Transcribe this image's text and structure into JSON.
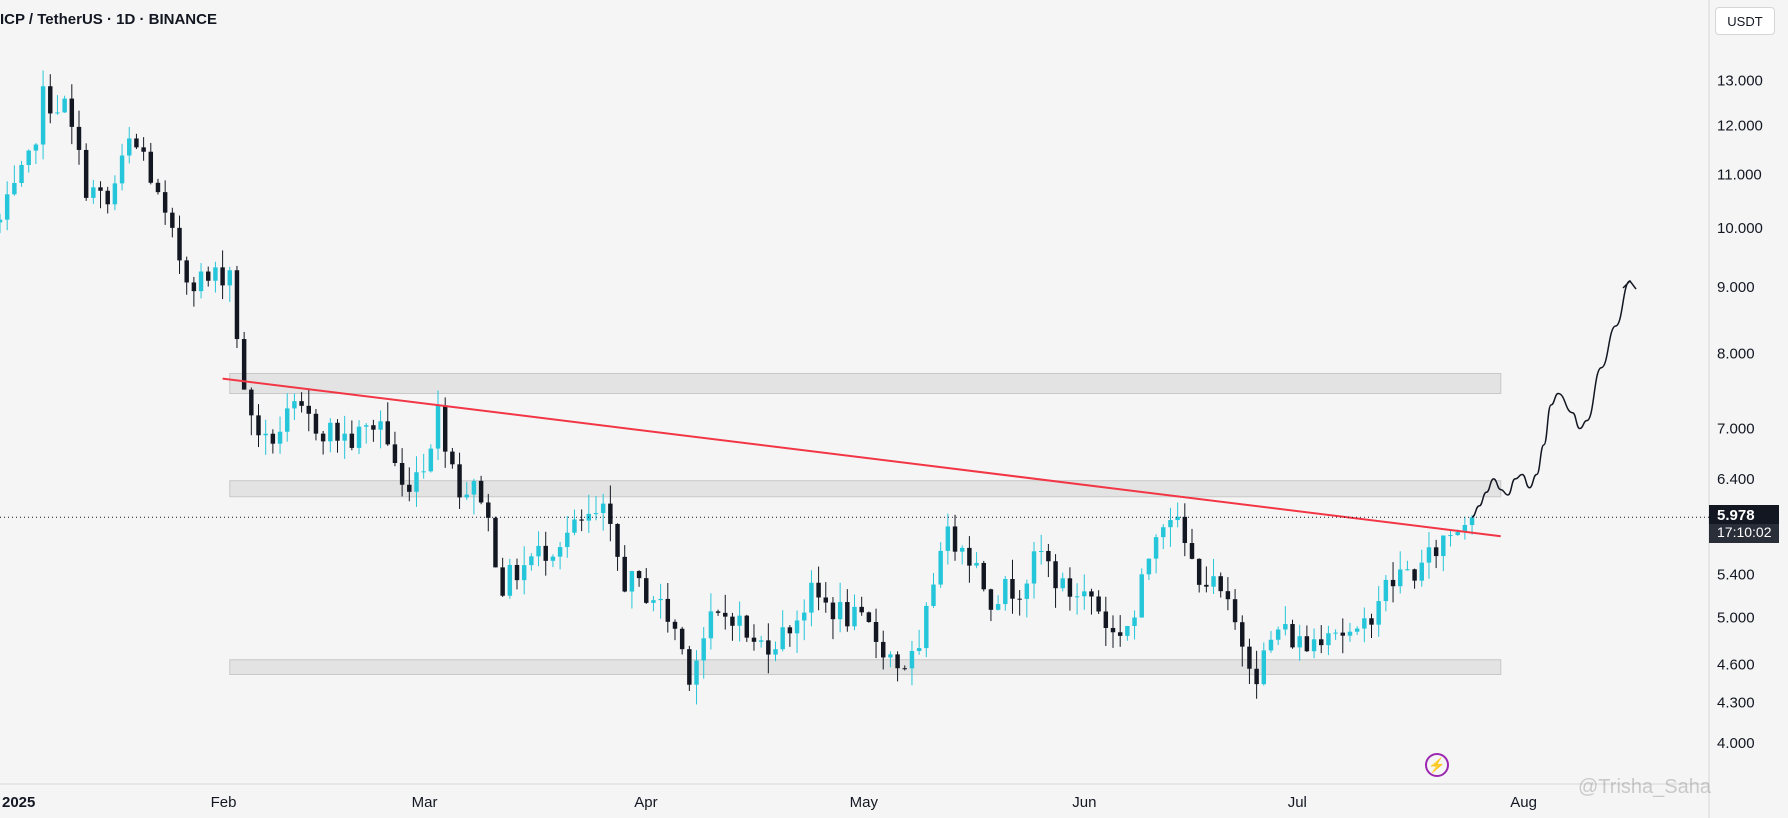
{
  "header": {
    "title": "ICP / TetherUS · 1D · BINANCE"
  },
  "scale": {
    "currency_label": "USDT"
  },
  "price_label": {
    "value": "5.978",
    "countdown": "17:10:02"
  },
  "watermark": "@Trisha_Saha",
  "colors": {
    "up": "#26c6da",
    "down": "#131722",
    "trendline": "#f23645",
    "zone": "#dcdcdc",
    "projection": "#131722"
  },
  "chart_data": {
    "type": "candlestick",
    "symbol": "ICP / TetherUS",
    "interval": "1D",
    "exchange": "BINANCE",
    "y_scale": "log",
    "ylim": [
      3.72,
      15.0
    ],
    "y_ticks": [
      "13.000",
      "12.000",
      "11.000",
      "10.000",
      "9.000",
      "8.000",
      "7.000",
      "6.400",
      "5.978",
      "5.400",
      "5.000",
      "4.600",
      "4.300",
      "4.000"
    ],
    "x_ticks": [
      {
        "label": "2025",
        "date": "2025-01-01"
      },
      {
        "label": "Feb",
        "date": "2025-02-01"
      },
      {
        "label": "Mar",
        "date": "2025-03-01"
      },
      {
        "label": "Apr",
        "date": "2025-04-01"
      },
      {
        "label": "May",
        "date": "2025-05-01"
      },
      {
        "label": "Jun",
        "date": "2025-06-01"
      },
      {
        "label": "Jul",
        "date": "2025-07-01"
      },
      {
        "label": "Aug",
        "date": "2025-08-01"
      }
    ],
    "xlim": [
      "2025-01-01",
      "2025-08-27"
    ],
    "last_price": 5.978,
    "waypoints": [
      {
        "date": "2025-01-01",
        "price": 10.1
      },
      {
        "date": "2025-01-05",
        "price": 11.2
      },
      {
        "date": "2025-01-07",
        "price": 12.6
      },
      {
        "date": "2025-01-10",
        "price": 12.4
      },
      {
        "date": "2025-01-13",
        "price": 10.8
      },
      {
        "date": "2025-01-16",
        "price": 10.4
      },
      {
        "date": "2025-01-19",
        "price": 11.6
      },
      {
        "date": "2025-01-21",
        "price": 11.4
      },
      {
        "date": "2025-01-24",
        "price": 10.1
      },
      {
        "date": "2025-01-27",
        "price": 9.2
      },
      {
        "date": "2025-01-30",
        "price": 9.1
      },
      {
        "date": "2025-02-02",
        "price": 9.3
      },
      {
        "date": "2025-02-04",
        "price": 7.4
      },
      {
        "date": "2025-02-07",
        "price": 6.8
      },
      {
        "date": "2025-02-11",
        "price": 7.2
      },
      {
        "date": "2025-02-15",
        "price": 7.0
      },
      {
        "date": "2025-02-19",
        "price": 6.85
      },
      {
        "date": "2025-02-23",
        "price": 7.1
      },
      {
        "date": "2025-02-26",
        "price": 6.3
      },
      {
        "date": "2025-03-01",
        "price": 6.6
      },
      {
        "date": "2025-03-03",
        "price": 7.2
      },
      {
        "date": "2025-03-06",
        "price": 6.3
      },
      {
        "date": "2025-03-09",
        "price": 6.25
      },
      {
        "date": "2025-03-12",
        "price": 5.3
      },
      {
        "date": "2025-03-16",
        "price": 5.55
      },
      {
        "date": "2025-03-20",
        "price": 5.75
      },
      {
        "date": "2025-03-23",
        "price": 5.9
      },
      {
        "date": "2025-03-26",
        "price": 6.0
      },
      {
        "date": "2025-03-29",
        "price": 5.35
      },
      {
        "date": "2025-04-02",
        "price": 5.2
      },
      {
        "date": "2025-04-05",
        "price": 4.9
      },
      {
        "date": "2025-04-07",
        "price": 4.55
      },
      {
        "date": "2025-04-10",
        "price": 4.95
      },
      {
        "date": "2025-04-13",
        "price": 5.05
      },
      {
        "date": "2025-04-16",
        "price": 4.75
      },
      {
        "date": "2025-04-20",
        "price": 4.85
      },
      {
        "date": "2025-04-24",
        "price": 5.2
      },
      {
        "date": "2025-04-28",
        "price": 5.05
      },
      {
        "date": "2025-05-02",
        "price": 4.9
      },
      {
        "date": "2025-05-06",
        "price": 4.6
      },
      {
        "date": "2025-05-09",
        "price": 4.65
      },
      {
        "date": "2025-05-12",
        "price": 5.75
      },
      {
        "date": "2025-05-15",
        "price": 5.75
      },
      {
        "date": "2025-05-19",
        "price": 5.2
      },
      {
        "date": "2025-05-23",
        "price": 5.3
      },
      {
        "date": "2025-05-26",
        "price": 5.6
      },
      {
        "date": "2025-05-29",
        "price": 5.25
      },
      {
        "date": "2025-06-02",
        "price": 5.2
      },
      {
        "date": "2025-06-05",
        "price": 4.85
      },
      {
        "date": "2025-06-08",
        "price": 5.0
      },
      {
        "date": "2025-06-11",
        "price": 5.9
      },
      {
        "date": "2025-06-13",
        "price": 6.05
      },
      {
        "date": "2025-06-16",
        "price": 5.5
      },
      {
        "date": "2025-06-20",
        "price": 5.2
      },
      {
        "date": "2025-06-23",
        "price": 4.8
      },
      {
        "date": "2025-06-25",
        "price": 4.55
      },
      {
        "date": "2025-06-28",
        "price": 4.9
      },
      {
        "date": "2025-07-02",
        "price": 4.75
      },
      {
        "date": "2025-07-05",
        "price": 4.95
      },
      {
        "date": "2025-07-09",
        "price": 4.8
      },
      {
        "date": "2025-07-12",
        "price": 5.2
      },
      {
        "date": "2025-07-15",
        "price": 5.4
      },
      {
        "date": "2025-07-18",
        "price": 5.45
      },
      {
        "date": "2025-07-21",
        "price": 5.75
      },
      {
        "date": "2025-07-24",
        "price": 5.95
      },
      {
        "date": "2025-07-25",
        "price": 5.978
      }
    ],
    "trendline": {
      "start": {
        "date": "2025-02-01",
        "price": 7.65
      },
      "end": {
        "date": "2025-07-29",
        "price": 5.78
      }
    },
    "zones": [
      {
        "from": "2025-02-02",
        "to": "2025-07-29",
        "low": 7.45,
        "high": 7.72
      },
      {
        "from": "2025-02-02",
        "to": "2025-07-29",
        "low": 6.2,
        "high": 6.38
      },
      {
        "from": "2025-02-02",
        "to": "2025-07-29",
        "low": 4.52,
        "high": 4.64
      }
    ],
    "projection": [
      {
        "date": "2025-07-25",
        "price": 5.98
      },
      {
        "date": "2025-07-26",
        "price": 6.1
      },
      {
        "date": "2025-07-27",
        "price": 6.25
      },
      {
        "date": "2025-07-28",
        "price": 6.4
      },
      {
        "date": "2025-07-29",
        "price": 6.28
      },
      {
        "date": "2025-07-30",
        "price": 6.22
      },
      {
        "date": "2025-07-31",
        "price": 6.4
      },
      {
        "date": "2025-08-01",
        "price": 6.45
      },
      {
        "date": "2025-08-02",
        "price": 6.3
      },
      {
        "date": "2025-08-03",
        "price": 6.45
      },
      {
        "date": "2025-08-04",
        "price": 6.8
      },
      {
        "date": "2025-08-05",
        "price": 7.3
      },
      {
        "date": "2025-08-06",
        "price": 7.45
      },
      {
        "date": "2025-08-08",
        "price": 7.2
      },
      {
        "date": "2025-08-09",
        "price": 7.0
      },
      {
        "date": "2025-08-10",
        "price": 7.1
      },
      {
        "date": "2025-08-12",
        "price": 7.8
      },
      {
        "date": "2025-08-14",
        "price": 8.4
      },
      {
        "date": "2025-08-16",
        "price": 9.1
      }
    ]
  }
}
